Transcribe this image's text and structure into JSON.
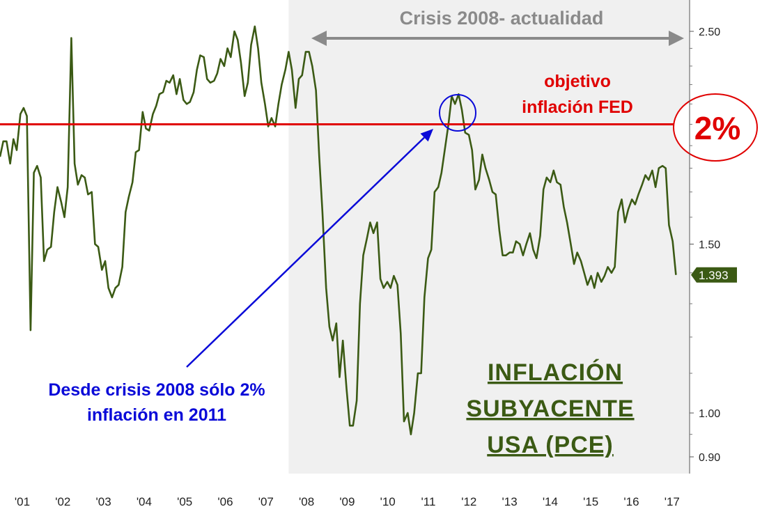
{
  "chart_data": {
    "type": "line",
    "title": "",
    "xlabel": "",
    "ylabel": "",
    "y_scale": "log",
    "ylim": [
      0.88,
      2.62
    ],
    "y_ticks": [
      2.5,
      1.5,
      1.0,
      0.9
    ],
    "y_tick_labels": [
      "2.50",
      "1.50",
      "1.00",
      "0.90"
    ],
    "x_tick_labels": [
      "'01",
      "'02",
      "'03",
      "'04",
      "'05",
      "'06",
      "'07",
      "'08",
      "'09",
      "'10",
      "'11",
      "'12",
      "'13",
      "'14",
      "'15",
      "'16",
      "'17"
    ],
    "grid": false,
    "legend": "none",
    "series": [
      {
        "color": "#3b5a14",
        "last_value_label": "1.393",
        "points": [
          [
            2000.92,
            1.85
          ],
          [
            2001.0,
            1.92
          ],
          [
            2001.08,
            1.92
          ],
          [
            2001.17,
            1.82
          ],
          [
            2001.25,
            1.93
          ],
          [
            2001.33,
            1.88
          ],
          [
            2001.42,
            2.05
          ],
          [
            2001.5,
            2.08
          ],
          [
            2001.58,
            2.04
          ],
          [
            2001.67,
            1.22
          ],
          [
            2001.75,
            1.78
          ],
          [
            2001.83,
            1.81
          ],
          [
            2001.92,
            1.76
          ],
          [
            2002.0,
            1.44
          ],
          [
            2002.08,
            1.48
          ],
          [
            2002.17,
            1.49
          ],
          [
            2002.25,
            1.62
          ],
          [
            2002.33,
            1.72
          ],
          [
            2002.42,
            1.66
          ],
          [
            2002.5,
            1.6
          ],
          [
            2002.58,
            1.72
          ],
          [
            2002.67,
            2.46
          ],
          [
            2002.75,
            1.82
          ],
          [
            2002.83,
            1.73
          ],
          [
            2002.92,
            1.77
          ],
          [
            2003.0,
            1.76
          ],
          [
            2003.08,
            1.69
          ],
          [
            2003.17,
            1.7
          ],
          [
            2003.25,
            1.5
          ],
          [
            2003.33,
            1.49
          ],
          [
            2003.42,
            1.41
          ],
          [
            2003.5,
            1.44
          ],
          [
            2003.58,
            1.35
          ],
          [
            2003.67,
            1.32
          ],
          [
            2003.75,
            1.35
          ],
          [
            2003.83,
            1.36
          ],
          [
            2003.92,
            1.42
          ],
          [
            2004.0,
            1.62
          ],
          [
            2004.08,
            1.68
          ],
          [
            2004.17,
            1.74
          ],
          [
            2004.25,
            1.87
          ],
          [
            2004.33,
            1.88
          ],
          [
            2004.42,
            2.06
          ],
          [
            2004.5,
            1.98
          ],
          [
            2004.58,
            1.97
          ],
          [
            2004.67,
            2.05
          ],
          [
            2004.75,
            2.09
          ],
          [
            2004.83,
            2.15
          ],
          [
            2004.92,
            2.16
          ],
          [
            2005.0,
            2.22
          ],
          [
            2005.08,
            2.21
          ],
          [
            2005.17,
            2.25
          ],
          [
            2005.25,
            2.15
          ],
          [
            2005.33,
            2.23
          ],
          [
            2005.42,
            2.12
          ],
          [
            2005.5,
            2.1
          ],
          [
            2005.58,
            2.11
          ],
          [
            2005.67,
            2.16
          ],
          [
            2005.75,
            2.28
          ],
          [
            2005.83,
            2.36
          ],
          [
            2005.92,
            2.35
          ],
          [
            2006.0,
            2.23
          ],
          [
            2006.08,
            2.21
          ],
          [
            2006.17,
            2.22
          ],
          [
            2006.25,
            2.26
          ],
          [
            2006.33,
            2.34
          ],
          [
            2006.42,
            2.3
          ],
          [
            2006.5,
            2.4
          ],
          [
            2006.58,
            2.35
          ],
          [
            2006.67,
            2.5
          ],
          [
            2006.75,
            2.45
          ],
          [
            2006.83,
            2.32
          ],
          [
            2006.92,
            2.14
          ],
          [
            2007.0,
            2.21
          ],
          [
            2007.08,
            2.42
          ],
          [
            2007.17,
            2.53
          ],
          [
            2007.25,
            2.4
          ],
          [
            2007.33,
            2.21
          ],
          [
            2007.42,
            2.1
          ],
          [
            2007.5,
            1.99
          ],
          [
            2007.58,
            2.03
          ],
          [
            2007.67,
            1.99
          ],
          [
            2007.75,
            2.1
          ],
          [
            2007.83,
            2.2
          ],
          [
            2007.92,
            2.28
          ],
          [
            2008.0,
            2.38
          ],
          [
            2008.08,
            2.28
          ],
          [
            2008.17,
            2.08
          ],
          [
            2008.25,
            2.23
          ],
          [
            2008.33,
            2.25
          ],
          [
            2008.42,
            2.38
          ],
          [
            2008.5,
            2.38
          ],
          [
            2008.58,
            2.3
          ],
          [
            2008.67,
            2.17
          ],
          [
            2008.75,
            1.85
          ],
          [
            2008.83,
            1.62
          ],
          [
            2008.92,
            1.35
          ],
          [
            2009.0,
            1.23
          ],
          [
            2009.08,
            1.19
          ],
          [
            2009.17,
            1.24
          ],
          [
            2009.25,
            1.09
          ],
          [
            2009.33,
            1.19
          ],
          [
            2009.42,
            1.06
          ],
          [
            2009.5,
            0.97
          ],
          [
            2009.58,
            0.97
          ],
          [
            2009.67,
            1.03
          ],
          [
            2009.75,
            1.3
          ],
          [
            2009.83,
            1.46
          ],
          [
            2009.92,
            1.52
          ],
          [
            2010.0,
            1.58
          ],
          [
            2010.08,
            1.54
          ],
          [
            2010.17,
            1.58
          ],
          [
            2010.25,
            1.38
          ],
          [
            2010.33,
            1.35
          ],
          [
            2010.42,
            1.37
          ],
          [
            2010.5,
            1.35
          ],
          [
            2010.58,
            1.39
          ],
          [
            2010.67,
            1.36
          ],
          [
            2010.75,
            1.21
          ],
          [
            2010.83,
            0.98
          ],
          [
            2010.92,
            1.0
          ],
          [
            2011.0,
            0.95
          ],
          [
            2011.08,
            1.0
          ],
          [
            2011.17,
            1.1
          ],
          [
            2011.25,
            1.1
          ],
          [
            2011.33,
            1.32
          ],
          [
            2011.42,
            1.45
          ],
          [
            2011.5,
            1.48
          ],
          [
            2011.58,
            1.7
          ],
          [
            2011.67,
            1.72
          ],
          [
            2011.75,
            1.78
          ],
          [
            2011.83,
            1.88
          ],
          [
            2011.92,
            2.0
          ],
          [
            2012.0,
            2.14
          ],
          [
            2012.08,
            2.1
          ],
          [
            2012.17,
            2.15
          ],
          [
            2012.25,
            2.07
          ],
          [
            2012.33,
            1.96
          ],
          [
            2012.42,
            1.95
          ],
          [
            2012.5,
            1.88
          ],
          [
            2012.58,
            1.71
          ],
          [
            2012.67,
            1.75
          ],
          [
            2012.75,
            1.86
          ],
          [
            2012.83,
            1.8
          ],
          [
            2012.92,
            1.75
          ],
          [
            2013.0,
            1.7
          ],
          [
            2013.08,
            1.69
          ],
          [
            2013.17,
            1.55
          ],
          [
            2013.25,
            1.46
          ],
          [
            2013.33,
            1.46
          ],
          [
            2013.42,
            1.47
          ],
          [
            2013.5,
            1.47
          ],
          [
            2013.58,
            1.51
          ],
          [
            2013.67,
            1.5
          ],
          [
            2013.75,
            1.46
          ],
          [
            2013.83,
            1.5
          ],
          [
            2013.92,
            1.54
          ],
          [
            2014.0,
            1.48
          ],
          [
            2014.08,
            1.45
          ],
          [
            2014.17,
            1.53
          ],
          [
            2014.25,
            1.71
          ],
          [
            2014.33,
            1.76
          ],
          [
            2014.42,
            1.74
          ],
          [
            2014.5,
            1.79
          ],
          [
            2014.58,
            1.74
          ],
          [
            2014.67,
            1.73
          ],
          [
            2014.75,
            1.64
          ],
          [
            2014.83,
            1.58
          ],
          [
            2014.92,
            1.5
          ],
          [
            2015.0,
            1.43
          ],
          [
            2015.08,
            1.47
          ],
          [
            2015.17,
            1.44
          ],
          [
            2015.25,
            1.4
          ],
          [
            2015.33,
            1.36
          ],
          [
            2015.42,
            1.39
          ],
          [
            2015.5,
            1.35
          ],
          [
            2015.58,
            1.4
          ],
          [
            2015.67,
            1.37
          ],
          [
            2015.75,
            1.39
          ],
          [
            2015.83,
            1.42
          ],
          [
            2015.92,
            1.4
          ],
          [
            2016.0,
            1.42
          ],
          [
            2016.08,
            1.62
          ],
          [
            2016.17,
            1.67
          ],
          [
            2016.25,
            1.58
          ],
          [
            2016.33,
            1.63
          ],
          [
            2016.42,
            1.67
          ],
          [
            2016.5,
            1.65
          ],
          [
            2016.58,
            1.69
          ],
          [
            2016.67,
            1.73
          ],
          [
            2016.75,
            1.77
          ],
          [
            2016.83,
            1.75
          ],
          [
            2016.92,
            1.79
          ],
          [
            2017.0,
            1.72
          ],
          [
            2017.08,
            1.8
          ],
          [
            2017.17,
            1.81
          ],
          [
            2017.25,
            1.8
          ],
          [
            2017.33,
            1.57
          ],
          [
            2017.42,
            1.51
          ],
          [
            2017.5,
            1.393
          ]
        ]
      }
    ],
    "fed_target": 2.0,
    "crisis_shading": [
      2008.0,
      2017.75
    ]
  },
  "annotations": {
    "crisis_label": "Crisis 2008- actualidad",
    "fed_label_line1": "objetivo",
    "fed_label_line2": "inflación FED",
    "target_badge": "2%",
    "callout_line1": "Desde crisis 2008 sólo 2%",
    "callout_line2": "inflación en 2011",
    "title_line1": "INFLACIÓN ",
    "title_line2": "SUBYACENTE",
    "title_line3": "USA (PCE)"
  },
  "colors": {
    "line": "#3b5a14",
    "fed_line": "#e00000",
    "crisis_shade": "#f0f0f0",
    "crisis_arrow": "#8a8a8a",
    "callout": "#0a0ad8"
  }
}
